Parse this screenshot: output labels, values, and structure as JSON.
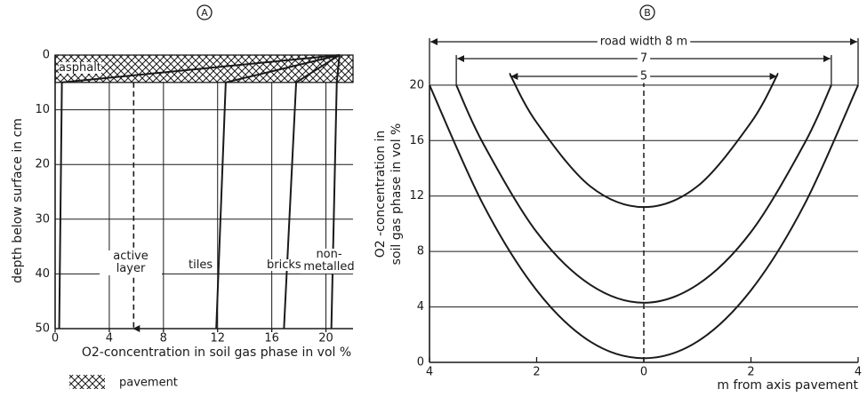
{
  "chart_data": [
    {
      "type": "line",
      "panel": "A",
      "xlabel": "O2-concentration in soil gas phase in vol %",
      "ylabel": "depth below surface in cm",
      "xlim": [
        0,
        22
      ],
      "ylim": [
        50,
        0
      ],
      "xticks": [
        0,
        4,
        8,
        12,
        16,
        20
      ],
      "yticks": [
        0,
        10,
        20,
        30,
        40,
        50
      ],
      "grid": true,
      "color": "#1a1a1a",
      "pavement": {
        "depth": [
          0,
          5
        ],
        "label": "pavement"
      },
      "series": [
        {
          "name": "asphalt",
          "x": [
            21,
            0.5,
            0.3
          ],
          "values": [
            0,
            5,
            50
          ],
          "style": "solid"
        },
        {
          "name": "active layer",
          "x": [
            5.8,
            5.8
          ],
          "values": [
            5,
            50
          ],
          "style": "dashed"
        },
        {
          "name": "tiles",
          "x": [
            21,
            12.6,
            11.9
          ],
          "values": [
            0,
            5,
            50
          ],
          "style": "solid"
        },
        {
          "name": "bricks",
          "x": [
            21,
            17.8,
            16.9
          ],
          "values": [
            0,
            5,
            50
          ],
          "style": "solid"
        },
        {
          "name": "non-metalled",
          "x": [
            21,
            20.8,
            20.4
          ],
          "values": [
            0,
            5,
            50
          ],
          "style": "solid"
        }
      ]
    },
    {
      "type": "line",
      "panel": "B",
      "xlabel": "m from axis pavement",
      "ylabel": [
        "O2 -concentration in",
        "soil gas phase in vol %"
      ],
      "xlim": [
        -4,
        4
      ],
      "ylim": [
        0,
        23
      ],
      "xticks": [
        {
          "value": -4,
          "label": "4"
        },
        {
          "value": -2,
          "label": "2"
        },
        0,
        2,
        4
      ],
      "yticks": [
        0,
        4,
        8,
        12,
        16,
        20
      ],
      "grid": true,
      "color": "#1a1a1a",
      "axis_line_x": 0,
      "series": [
        {
          "name": "road width 8 m",
          "x": [
            -4,
            -3,
            -2,
            -1,
            0,
            1,
            2,
            3,
            4
          ],
          "values": [
            20,
            11.4,
            5.2,
            1.5,
            0.3,
            1.5,
            5.2,
            11.4,
            20
          ]
        },
        {
          "name": "7",
          "x": [
            -3.5,
            -3,
            -2,
            -1,
            0,
            1,
            2,
            3,
            3.5
          ],
          "values": [
            20,
            15.8,
            9.4,
            5.6,
            4.3,
            5.6,
            9.4,
            15.8,
            20
          ]
        },
        {
          "name": "5",
          "x": [
            -2.5,
            -2,
            -1,
            0,
            1,
            2,
            2.5
          ],
          "values": [
            20.8,
            17.3,
            12.7,
            11.2,
            12.7,
            17.3,
            20.8
          ]
        }
      ]
    }
  ]
}
